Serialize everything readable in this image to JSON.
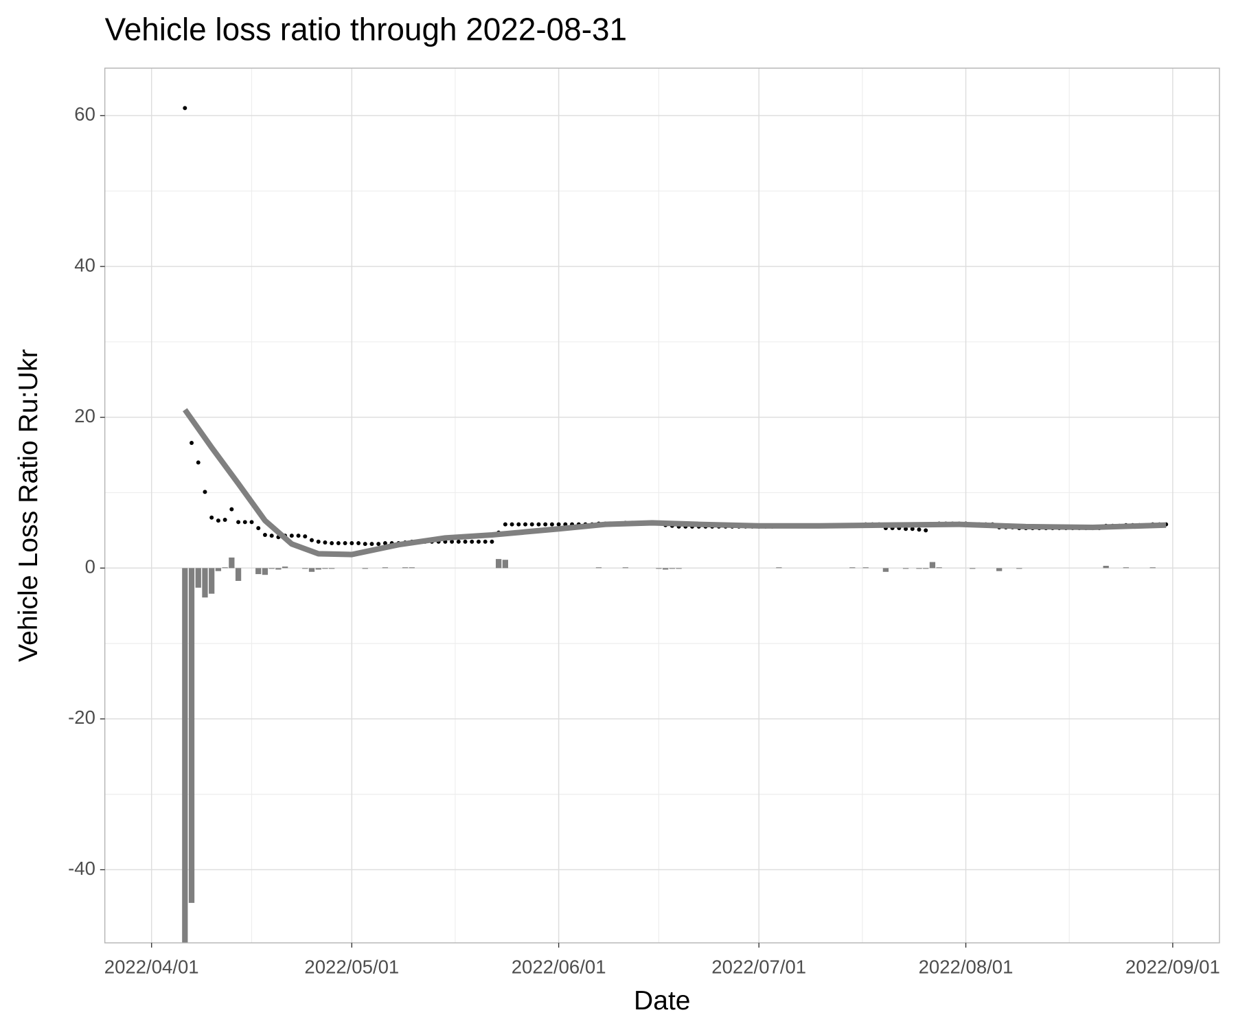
{
  "chart_data": {
    "type": "combo",
    "title": "Vehicle loss ratio through 2022-08-31",
    "x_label": "Date",
    "y_label": "Vehicle Loss Ratio Ru:Ukr",
    "grid": true,
    "xlim": [
      "2022-03-25",
      "2022-09-08"
    ],
    "xticks": [
      {
        "value": "2022-04-01",
        "label": "2022/04/01"
      },
      {
        "value": "2022-05-01",
        "label": "2022/05/01"
      },
      {
        "value": "2022-06-01",
        "label": "2022/06/01"
      },
      {
        "value": "2022-07-01",
        "label": "2022/07/01"
      },
      {
        "value": "2022-08-01",
        "label": "2022/08/01"
      },
      {
        "value": "2022-09-01",
        "label": "2022/09/01"
      }
    ],
    "ylim": [
      -49.7,
      66.3
    ],
    "yticks": [
      -40,
      -20,
      0,
      20,
      40,
      60
    ],
    "x": [
      "2022-04-06",
      "2022-04-07",
      "2022-04-08",
      "2022-04-09",
      "2022-04-10",
      "2022-04-11",
      "2022-04-12",
      "2022-04-13",
      "2022-04-14",
      "2022-04-15",
      "2022-04-16",
      "2022-04-17",
      "2022-04-18",
      "2022-04-19",
      "2022-04-20",
      "2022-04-21",
      "2022-04-22",
      "2022-04-23",
      "2022-04-24",
      "2022-04-25",
      "2022-04-26",
      "2022-04-27",
      "2022-04-28",
      "2022-04-29",
      "2022-04-30",
      "2022-05-01",
      "2022-05-02",
      "2022-05-03",
      "2022-05-04",
      "2022-05-05",
      "2022-05-06",
      "2022-05-07",
      "2022-05-08",
      "2022-05-09",
      "2022-05-10",
      "2022-05-11",
      "2022-05-12",
      "2022-05-13",
      "2022-05-14",
      "2022-05-15",
      "2022-05-16",
      "2022-05-17",
      "2022-05-18",
      "2022-05-19",
      "2022-05-20",
      "2022-05-21",
      "2022-05-22",
      "2022-05-23",
      "2022-05-24",
      "2022-05-25",
      "2022-05-26",
      "2022-05-27",
      "2022-05-28",
      "2022-05-29",
      "2022-05-30",
      "2022-05-31",
      "2022-06-01",
      "2022-06-02",
      "2022-06-03",
      "2022-06-04",
      "2022-06-05",
      "2022-06-06",
      "2022-06-07",
      "2022-06-08",
      "2022-06-09",
      "2022-06-10",
      "2022-06-11",
      "2022-06-12",
      "2022-06-13",
      "2022-06-14",
      "2022-06-15",
      "2022-06-16",
      "2022-06-17",
      "2022-06-18",
      "2022-06-19",
      "2022-06-20",
      "2022-06-21",
      "2022-06-22",
      "2022-06-23",
      "2022-06-24",
      "2022-06-25",
      "2022-06-26",
      "2022-06-27",
      "2022-06-28",
      "2022-06-29",
      "2022-06-30",
      "2022-07-01",
      "2022-07-02",
      "2022-07-03",
      "2022-07-04",
      "2022-07-05",
      "2022-07-06",
      "2022-07-07",
      "2022-07-08",
      "2022-07-09",
      "2022-07-10",
      "2022-07-11",
      "2022-07-12",
      "2022-07-13",
      "2022-07-14",
      "2022-07-15",
      "2022-07-16",
      "2022-07-17",
      "2022-07-18",
      "2022-07-19",
      "2022-07-20",
      "2022-07-21",
      "2022-07-22",
      "2022-07-23",
      "2022-07-24",
      "2022-07-25",
      "2022-07-26",
      "2022-07-27",
      "2022-07-28",
      "2022-07-29",
      "2022-07-30",
      "2022-07-31",
      "2022-08-01",
      "2022-08-02",
      "2022-08-03",
      "2022-08-04",
      "2022-08-05",
      "2022-08-06",
      "2022-08-07",
      "2022-08-08",
      "2022-08-09",
      "2022-08-10",
      "2022-08-11",
      "2022-08-12",
      "2022-08-13",
      "2022-08-14",
      "2022-08-15",
      "2022-08-16",
      "2022-08-17",
      "2022-08-18",
      "2022-08-19",
      "2022-08-20",
      "2022-08-21",
      "2022-08-22",
      "2022-08-23",
      "2022-08-24",
      "2022-08-25",
      "2022-08-26",
      "2022-08-27",
      "2022-08-28",
      "2022-08-29",
      "2022-08-30",
      "2022-08-31"
    ],
    "series": [
      {
        "type": "bar",
        "color": "#7f7f7f",
        "values": [
          -55,
          -44.4,
          -2.6,
          -3.9,
          -3.4,
          -0.4,
          0.1,
          1.4,
          -1.7,
          0,
          0,
          -0.8,
          -0.9,
          -0.1,
          -0.2,
          0.2,
          0,
          0,
          -0.1,
          -0.5,
          -0.2,
          -0.1,
          -0.1,
          0,
          0,
          0,
          0,
          -0.1,
          0,
          0,
          0.1,
          0,
          0,
          0.1,
          0.1,
          0,
          0,
          0,
          0,
          0,
          0,
          0,
          0,
          0,
          0,
          0,
          0,
          1.2,
          1.1,
          0,
          0,
          0,
          0,
          0,
          0,
          0,
          0,
          0,
          0,
          0,
          0,
          0,
          0.1,
          0,
          0,
          0,
          0.1,
          0,
          0,
          0,
          0,
          -0.1,
          -0.2,
          -0.1,
          -0.1,
          0,
          0,
          0,
          0,
          0,
          0,
          0,
          0,
          0,
          0,
          0,
          0,
          0,
          0,
          0.1,
          0,
          0,
          0,
          0,
          0,
          0,
          0,
          0,
          0,
          0,
          0.1,
          0,
          0.1,
          0,
          0,
          -0.5,
          0,
          0,
          -0.1,
          0,
          -0.1,
          -0.1,
          0.8,
          0.1,
          0,
          0,
          0,
          0,
          -0.1,
          0,
          0,
          0,
          -0.4,
          0,
          0,
          -0.1,
          0,
          0,
          0,
          0,
          0,
          0,
          0,
          0,
          0,
          0,
          0,
          0,
          0.3,
          0,
          0,
          0.1,
          0,
          0,
          0,
          0.1,
          0,
          0
        ]
      },
      {
        "type": "scatter",
        "color": "#000000",
        "values": [
          61,
          16.6,
          14.0,
          10.1,
          6.7,
          6.3,
          6.4,
          7.8,
          6.1,
          6.1,
          6.1,
          5.3,
          4.4,
          4.3,
          4.1,
          4.3,
          4.3,
          4.3,
          4.2,
          3.7,
          3.5,
          3.4,
          3.3,
          3.3,
          3.3,
          3.3,
          3.3,
          3.2,
          3.2,
          3.2,
          3.3,
          3.3,
          3.3,
          3.4,
          3.5,
          3.5,
          3.5,
          3.5,
          3.5,
          3.5,
          3.5,
          3.5,
          3.5,
          3.5,
          3.5,
          3.5,
          3.5,
          4.7,
          5.8,
          5.8,
          5.8,
          5.8,
          5.8,
          5.8,
          5.8,
          5.8,
          5.8,
          5.8,
          5.8,
          5.8,
          5.8,
          5.8,
          5.9,
          5.9,
          5.9,
          5.9,
          6.0,
          6.0,
          6.0,
          6.0,
          6.0,
          5.9,
          5.7,
          5.6,
          5.5,
          5.5,
          5.5,
          5.5,
          5.5,
          5.5,
          5.5,
          5.5,
          5.5,
          5.5,
          5.5,
          5.5,
          5.5,
          5.5,
          5.5,
          5.6,
          5.6,
          5.6,
          5.6,
          5.6,
          5.6,
          5.6,
          5.6,
          5.6,
          5.6,
          5.6,
          5.7,
          5.7,
          5.8,
          5.8,
          5.8,
          5.3,
          5.3,
          5.3,
          5.2,
          5.2,
          5.1,
          5.0,
          5.8,
          5.9,
          5.9,
          5.9,
          5.9,
          5.9,
          5.8,
          5.8,
          5.8,
          5.8,
          5.4,
          5.4,
          5.4,
          5.3,
          5.3,
          5.3,
          5.3,
          5.3,
          5.3,
          5.3,
          5.3,
          5.3,
          5.3,
          5.3,
          5.3,
          5.3,
          5.6,
          5.6,
          5.6,
          5.7,
          5.7,
          5.7,
          5.7,
          5.8,
          5.8,
          5.8
        ]
      },
      {
        "type": "line",
        "color": "#808080",
        "x": [
          "2022-04-06",
          "2022-04-10",
          "2022-04-14",
          "2022-04-18",
          "2022-04-22",
          "2022-04-26",
          "2022-05-01",
          "2022-05-08",
          "2022-05-15",
          "2022-05-22",
          "2022-06-01",
          "2022-06-08",
          "2022-06-15",
          "2022-06-22",
          "2022-07-01",
          "2022-07-10",
          "2022-07-20",
          "2022-07-31",
          "2022-08-10",
          "2022-08-20",
          "2022-08-31"
        ],
        "values": [
          21,
          16,
          11.2,
          6.3,
          3.2,
          1.9,
          1.8,
          3.1,
          4.0,
          4.4,
          5.2,
          5.8,
          6.0,
          5.8,
          5.6,
          5.6,
          5.7,
          5.8,
          5.5,
          5.4,
          5.7
        ]
      }
    ]
  }
}
